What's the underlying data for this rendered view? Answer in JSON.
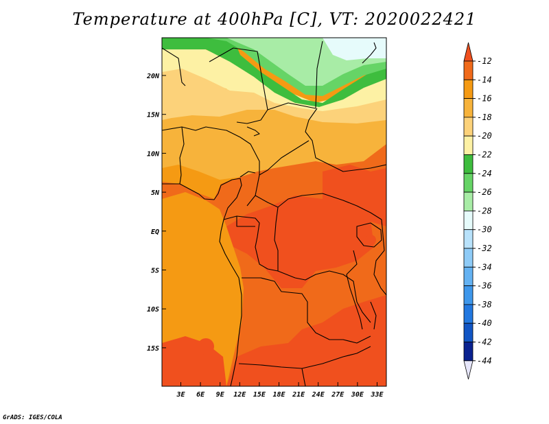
{
  "title": "Temperature at 400hPa [C], VT: 2020022421",
  "credit": "GrADS: IGES/COLA",
  "map": {
    "lat_labels": [
      "20N",
      "15N",
      "10N",
      "5N",
      "EQ",
      "5S",
      "10S",
      "15S"
    ],
    "lon_labels": [
      "3E",
      "6E",
      "9E",
      "12E",
      "15E",
      "18E",
      "21E",
      "24E",
      "27E",
      "30E",
      "33E"
    ]
  },
  "colorbar": {
    "labels": [
      "-12",
      "-14",
      "-16",
      "-18",
      "-20",
      "-22",
      "-24",
      "-26",
      "-28",
      "-30",
      "-32",
      "-34",
      "-36",
      "-38",
      "-40",
      "-42",
      "-44"
    ],
    "colors": [
      "#f0501e",
      "#f06a1a",
      "#f59a13",
      "#f7b33b",
      "#fcd27a",
      "#fdf1a4",
      "#3ebd3e",
      "#66d466",
      "#a8eca6",
      "#e6fbfb",
      "#b8e2fb",
      "#8ecbf7",
      "#64b2f2",
      "#3e97eb",
      "#2278e0",
      "#1155c4",
      "#0a2290",
      "#e6e6fa"
    ]
  },
  "colors": {
    "ocean": "#f59a13",
    "land_base": "#f06a1a",
    "hot": "#f0501e",
    "warm_band": "#f7b33b",
    "yellow_band": "#fcd27a",
    "pale_band": "#fdf1a4",
    "green_dark": "#3ebd3e",
    "green_mid": "#66d466",
    "green_light": "#a8eca6",
    "cyan_pale": "#e6fbfb"
  }
}
